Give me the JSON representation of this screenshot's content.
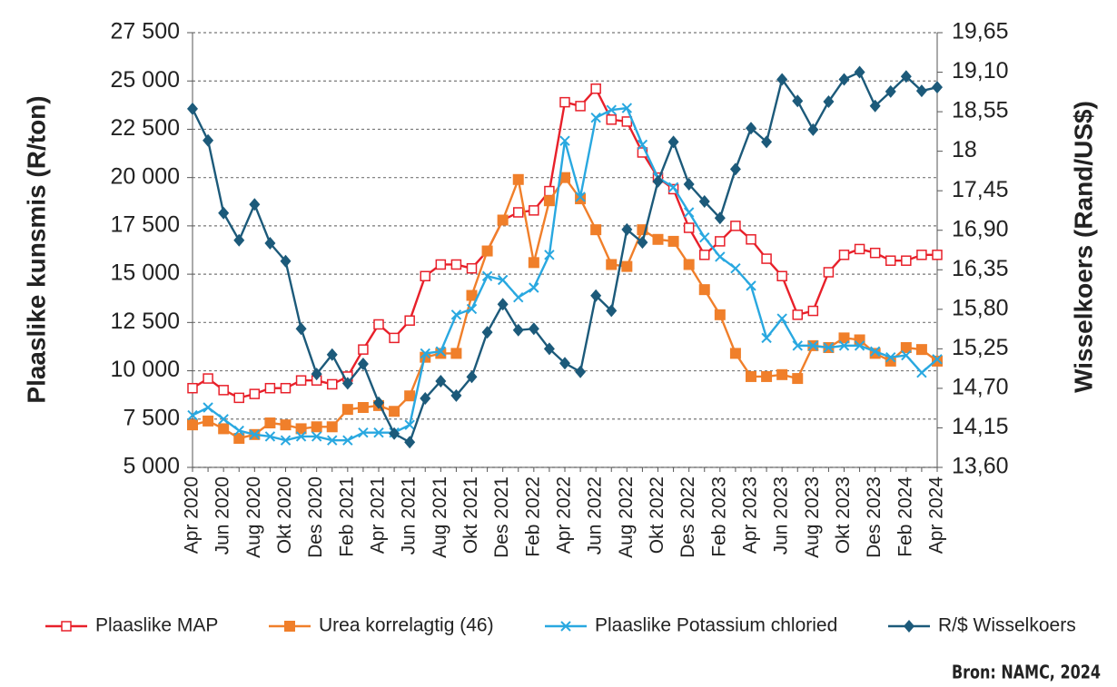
{
  "chart_data": {
    "type": "line",
    "y_label": "Plaaslike kunsmis (R/ton)",
    "y2_label": "Wisselkoers (Rand/US$)",
    "source": "Bron: NAMC, 2024",
    "categories": [
      "Apr 2020",
      null,
      "Jun 2020",
      null,
      "Aug 2020",
      null,
      "Okt 2020",
      null,
      "Des 2020",
      null,
      "Feb 2021",
      null,
      "Apr 2021",
      null,
      "Jun 2021",
      null,
      "Aug 2021",
      null,
      "Okt 2021",
      null,
      "Des 2021",
      null,
      "Feb 2022",
      null,
      "Apr 2022",
      null,
      "Jun 2022",
      null,
      "Aug 2022",
      null,
      "Okt 2022",
      null,
      "Des 2022",
      null,
      "Feb 2023",
      null,
      "Apr 2023",
      null,
      "Jun 2023",
      null,
      "Aug 2023",
      null,
      "Okt 2023",
      null,
      "Des 2023",
      null,
      "Feb 2024",
      null,
      "Apr 2024"
    ],
    "ylim": [
      5000,
      27500
    ],
    "yticks": [
      {
        "value": 5000,
        "label": "5 000"
      },
      {
        "value": 7500,
        "label": "7 500"
      },
      {
        "value": 10000,
        "label": "10 000"
      },
      {
        "value": 12500,
        "label": "12 500"
      },
      {
        "value": 15000,
        "label": "15 000"
      },
      {
        "value": 17500,
        "label": "17 500"
      },
      {
        "value": 20000,
        "label": "20 000"
      },
      {
        "value": 22500,
        "label": "22 500"
      },
      {
        "value": 25000,
        "label": "25 000"
      },
      {
        "value": 27500,
        "label": "27 500"
      }
    ],
    "y2lim": [
      13.6,
      19.65
    ],
    "y2ticks": [
      {
        "value": 13.6,
        "label": "13,60"
      },
      {
        "value": 14.15,
        "label": "14,15"
      },
      {
        "value": 14.7,
        "label": "14,70"
      },
      {
        "value": 15.25,
        "label": "15,25"
      },
      {
        "value": 15.8,
        "label": "15,80"
      },
      {
        "value": 16.35,
        "label": "16,35"
      },
      {
        "value": 16.9,
        "label": "16,90"
      },
      {
        "value": 17.45,
        "label": "17,45"
      },
      18,
      {
        "value": 18.55,
        "label": "18,55"
      },
      {
        "value": 19.1,
        "label": "19,10"
      },
      {
        "value": 19.65,
        "label": "19,65"
      }
    ],
    "grid": true,
    "legend": "bottom",
    "series": [
      {
        "name": "Plaaslike MAP",
        "color": "#e8202a",
        "marker": "square-open",
        "values": [
          9100,
          9600,
          9000,
          8600,
          8800,
          9100,
          9100,
          9500,
          9500,
          9300,
          9700,
          11100,
          12400,
          11700,
          12600,
          14900,
          15500,
          15500,
          15300,
          16200,
          17800,
          18200,
          18300,
          19300,
          23900,
          23700,
          24600,
          23000,
          22900,
          21300,
          20000,
          19400,
          17400,
          16000,
          16700,
          17500,
          16800,
          15800,
          14900,
          12900,
          13100,
          15100,
          16000,
          16300,
          16100,
          15700,
          15700,
          16000,
          16000
        ]
      },
      {
        "name": "Urea korrelagtig (46)",
        "color": "#f07f2a",
        "marker": "square",
        "values": [
          7200,
          7400,
          7000,
          6500,
          6700,
          7300,
          7200,
          7000,
          7100,
          7100,
          8000,
          8100,
          8200,
          7900,
          8700,
          10700,
          10900,
          10900,
          13900,
          16200,
          17800,
          19900,
          15600,
          18800,
          20000,
          18900,
          17300,
          15500,
          15400,
          17300,
          16800,
          16700,
          15500,
          14200,
          12900,
          10900,
          9700,
          9700,
          9800,
          9600,
          11300,
          11200,
          11700,
          11600,
          10900,
          10500,
          11200,
          11100,
          10500
        ]
      },
      {
        "name": "Plaaslike Potassium chloried",
        "color": "#29a8e0",
        "marker": "x",
        "values": [
          7700,
          8100,
          7500,
          6900,
          6700,
          6600,
          6400,
          6600,
          6600,
          6400,
          6400,
          6800,
          6800,
          6800,
          7200,
          10900,
          11000,
          12900,
          13200,
          14900,
          14700,
          13800,
          14300,
          16000,
          21900,
          19000,
          23100,
          23500,
          23600,
          21700,
          20000,
          19500,
          18200,
          16900,
          15900,
          15300,
          14400,
          11700,
          12700,
          11300,
          11300,
          11200,
          11300,
          11300,
          11000,
          10700,
          10800,
          9900,
          10600
        ]
      },
      {
        "name": "R/$ Wisselkoers",
        "color": "#1c5a7a",
        "marker": "diamond",
        "axis": "y2",
        "values": [
          18.59,
          18.15,
          17.14,
          16.76,
          17.26,
          16.72,
          16.47,
          15.53,
          14.9,
          15.17,
          14.77,
          15.04,
          14.5,
          14.07,
          13.95,
          14.56,
          14.8,
          14.6,
          14.86,
          15.48,
          15.87,
          15.51,
          15.53,
          15.25,
          15.05,
          14.93,
          15.99,
          15.78,
          16.91,
          16.73,
          17.58,
          18.13,
          17.54,
          17.3,
          17.07,
          17.75,
          18.32,
          18.13,
          19.0,
          18.7,
          18.3,
          18.69,
          19.0,
          19.1,
          18.63,
          18.83,
          19.04,
          18.84,
          18.89
        ]
      }
    ]
  }
}
